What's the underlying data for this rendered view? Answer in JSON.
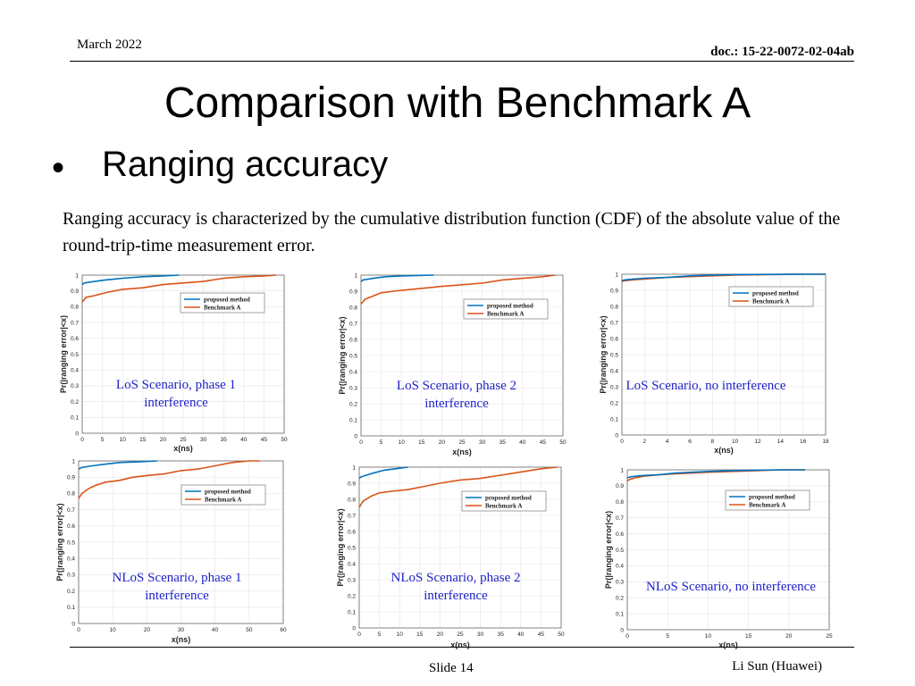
{
  "header": {
    "date": "March 2022",
    "doc": "doc.: 15-22-0072-02-04ab"
  },
  "title": "Comparison with Benchmark A",
  "bullet": "Ranging accuracy",
  "bullet_mark": "•",
  "description": "Ranging accuracy is characterized by the cumulative distribution function (CDF) of the absolute value of the round-trip-time measurement error.",
  "footer": {
    "slide": "Slide 14",
    "author": "Li Sun (Huawei)"
  },
  "colors": {
    "proposed": "#0072bd",
    "benchmark": "#d95319"
  },
  "chart_data": [
    {
      "type": "line",
      "scenario": [
        "LoS Scenario, phase 1",
        "interference"
      ],
      "xlabel": "x(ns)",
      "ylabel": "Pr(|ranging error|<x)",
      "xlim": [
        0,
        50
      ],
      "ylim": [
        0,
        1
      ],
      "xticks": [
        0,
        5,
        10,
        15,
        20,
        25,
        30,
        35,
        40,
        45,
        50
      ],
      "yticks": [
        0,
        0.1,
        0.2,
        0.3,
        0.4,
        0.5,
        0.6,
        0.7,
        0.8,
        0.9,
        1
      ],
      "series": [
        {
          "name": "proposed method",
          "x": [
            0,
            0.5,
            3,
            6,
            10,
            15,
            20,
            24
          ],
          "y": [
            0.94,
            0.95,
            0.96,
            0.97,
            0.98,
            0.99,
            0.995,
            1
          ]
        },
        {
          "name": "Benchmark A",
          "x": [
            0,
            1,
            3,
            6,
            10,
            15,
            20,
            25,
            30,
            35,
            40,
            45,
            48
          ],
          "y": [
            0.83,
            0.86,
            0.87,
            0.89,
            0.91,
            0.92,
            0.94,
            0.95,
            0.96,
            0.98,
            0.99,
            0.995,
            1
          ]
        }
      ]
    },
    {
      "type": "line",
      "scenario": [
        "LoS Scenario, phase 2",
        "interference"
      ],
      "xlabel": "x(ns)",
      "ylabel": "Pr(|ranging error|<x)",
      "xlim": [
        0,
        50
      ],
      "ylim": [
        0,
        1
      ],
      "xticks": [
        0,
        5,
        10,
        15,
        20,
        25,
        30,
        35,
        40,
        45,
        50
      ],
      "yticks": [
        0,
        0.1,
        0.2,
        0.3,
        0.4,
        0.5,
        0.6,
        0.7,
        0.8,
        0.9,
        1
      ],
      "series": [
        {
          "name": "proposed method",
          "x": [
            0,
            0.5,
            3,
            6,
            10,
            14,
            18
          ],
          "y": [
            0.96,
            0.97,
            0.98,
            0.99,
            0.995,
            0.998,
            1
          ]
        },
        {
          "name": "Benchmark A",
          "x": [
            0,
            1,
            3,
            5,
            8,
            12,
            16,
            20,
            25,
            30,
            35,
            40,
            45,
            48
          ],
          "y": [
            0.82,
            0.85,
            0.87,
            0.89,
            0.9,
            0.91,
            0.92,
            0.93,
            0.94,
            0.95,
            0.97,
            0.98,
            0.99,
            1
          ]
        }
      ]
    },
    {
      "type": "line",
      "scenario": [
        "LoS Scenario, no interference"
      ],
      "xlabel": "x(ns)",
      "ylabel": "Pr(|ranging error|<x)",
      "xlim": [
        0,
        18
      ],
      "ylim": [
        0,
        1
      ],
      "xticks": [
        0,
        2,
        4,
        6,
        8,
        10,
        12,
        14,
        16,
        18
      ],
      "yticks": [
        0,
        0.1,
        0.2,
        0.3,
        0.4,
        0.5,
        0.6,
        0.7,
        0.8,
        0.9,
        1
      ],
      "series": [
        {
          "name": "proposed method",
          "x": [
            0,
            0.3,
            1,
            2,
            4,
            6,
            8,
            10,
            13,
            16,
            18
          ],
          "y": [
            0.96,
            0.965,
            0.97,
            0.975,
            0.98,
            0.99,
            0.995,
            0.998,
            0.999,
            1,
            1
          ]
        },
        {
          "name": "Benchmark A",
          "x": [
            0,
            0.3,
            1,
            2,
            4,
            6,
            8,
            10,
            13,
            16,
            18
          ],
          "y": [
            0.955,
            0.96,
            0.965,
            0.97,
            0.98,
            0.985,
            0.99,
            0.995,
            0.998,
            1,
            1
          ]
        }
      ]
    },
    {
      "type": "line",
      "scenario": [
        "NLoS Scenario, phase 1",
        "interference"
      ],
      "xlabel": "x(ns)",
      "ylabel": "Pr(|ranging error|<x)",
      "xlim": [
        0,
        60
      ],
      "ylim": [
        0,
        1
      ],
      "xticks": [
        0,
        10,
        20,
        30,
        40,
        50,
        60
      ],
      "yticks": [
        0,
        0.1,
        0.2,
        0.3,
        0.4,
        0.5,
        0.6,
        0.7,
        0.8,
        0.9,
        1
      ],
      "series": [
        {
          "name": "proposed method",
          "x": [
            0,
            1,
            4,
            8,
            12,
            18,
            23
          ],
          "y": [
            0.95,
            0.96,
            0.97,
            0.98,
            0.99,
            0.995,
            1
          ]
        },
        {
          "name": "Benchmark A",
          "x": [
            0,
            1,
            3,
            5,
            8,
            12,
            16,
            20,
            25,
            30,
            35,
            40,
            45,
            50,
            53
          ],
          "y": [
            0.77,
            0.8,
            0.83,
            0.85,
            0.87,
            0.88,
            0.9,
            0.91,
            0.92,
            0.94,
            0.95,
            0.97,
            0.99,
            1,
            1
          ]
        }
      ]
    },
    {
      "type": "line",
      "scenario": [
        "NLoS Scenario, phase 2",
        "interference"
      ],
      "xlabel": "x(ns)",
      "ylabel": "Pr(|ranging error|<x)",
      "xlim": [
        0,
        50
      ],
      "ylim": [
        0,
        1
      ],
      "xticks": [
        0,
        5,
        10,
        15,
        20,
        25,
        30,
        35,
        40,
        45,
        50
      ],
      "yticks": [
        0,
        0.1,
        0.2,
        0.3,
        0.4,
        0.5,
        0.6,
        0.7,
        0.8,
        0.9,
        1
      ],
      "series": [
        {
          "name": "proposed method",
          "x": [
            0,
            0.5,
            3,
            6,
            9,
            12
          ],
          "y": [
            0.93,
            0.94,
            0.96,
            0.98,
            0.99,
            1
          ]
        },
        {
          "name": "Benchmark A",
          "x": [
            0,
            1,
            3,
            5,
            8,
            12,
            16,
            20,
            25,
            30,
            35,
            40,
            45,
            49
          ],
          "y": [
            0.75,
            0.79,
            0.82,
            0.84,
            0.85,
            0.86,
            0.88,
            0.9,
            0.92,
            0.93,
            0.95,
            0.97,
            0.99,
            1
          ]
        }
      ]
    },
    {
      "type": "line",
      "scenario": [
        "NLoS Scenario, no interference"
      ],
      "xlabel": "x(ns)",
      "ylabel": "Pr(|ranging error|<x)",
      "xlim": [
        0,
        25
      ],
      "ylim": [
        0,
        1
      ],
      "xticks": [
        0,
        5,
        10,
        15,
        20,
        25
      ],
      "yticks": [
        0,
        0.1,
        0.2,
        0.3,
        0.4,
        0.5,
        0.6,
        0.7,
        0.8,
        0.9,
        1
      ],
      "series": [
        {
          "name": "proposed method",
          "x": [
            0,
            0.3,
            1,
            2,
            4,
            6,
            8,
            10,
            13,
            16,
            19,
            22
          ],
          "y": [
            0.95,
            0.955,
            0.96,
            0.965,
            0.97,
            0.98,
            0.985,
            0.99,
            0.995,
            0.998,
            1,
            1
          ]
        },
        {
          "name": "Benchmark A",
          "x": [
            0,
            0.3,
            1,
            2,
            4,
            6,
            8,
            10,
            13,
            16,
            19,
            22
          ],
          "y": [
            0.93,
            0.94,
            0.95,
            0.96,
            0.97,
            0.975,
            0.98,
            0.985,
            0.99,
            0.995,
            1,
            1
          ]
        }
      ]
    }
  ]
}
